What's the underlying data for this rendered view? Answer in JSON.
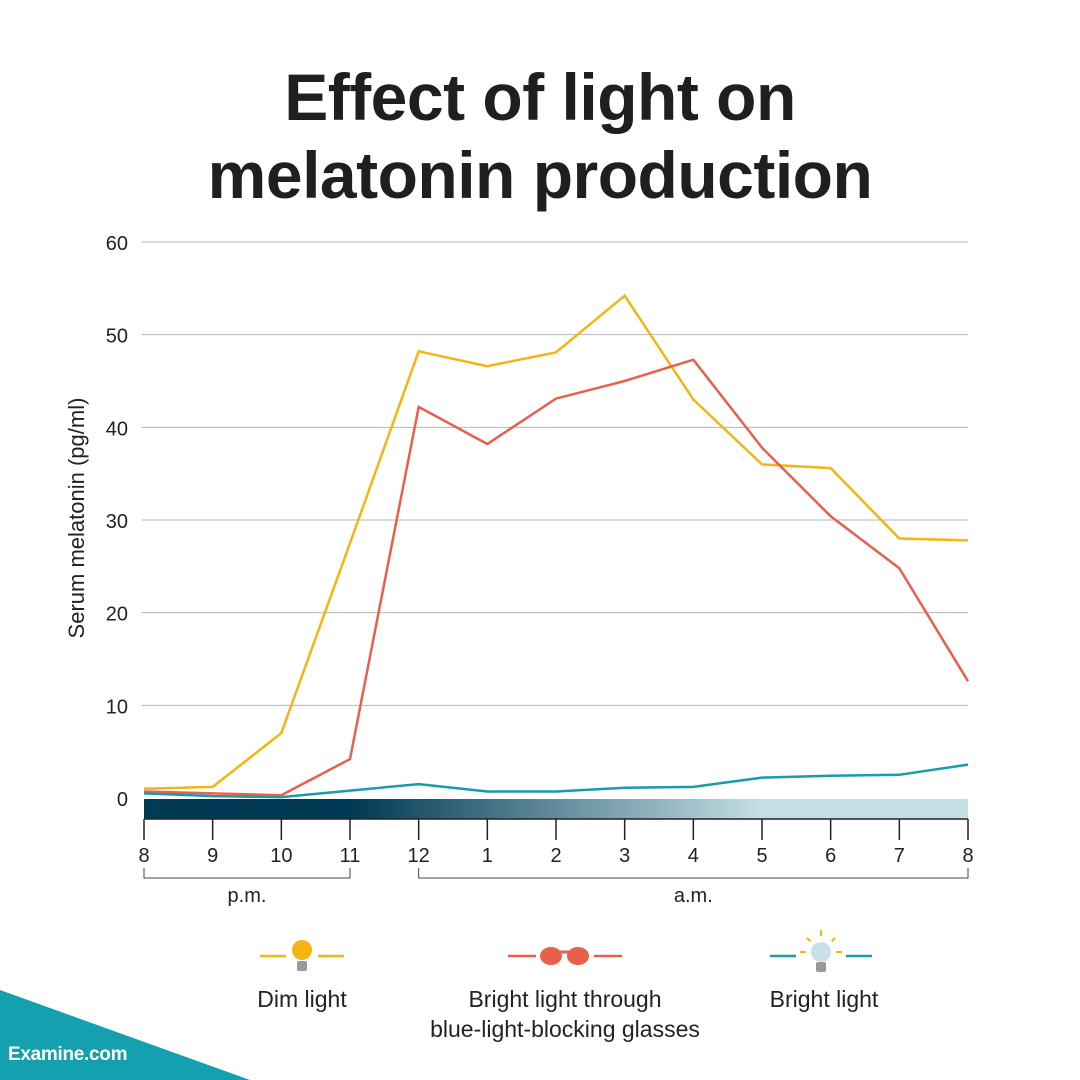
{
  "title_line1": "Effect of light on",
  "title_line2": "melatonin production",
  "brand": "Examine.com",
  "colors": {
    "dim": "#F5B414",
    "glasses": "#E8604C",
    "bright": "#1A9BAA",
    "grid": "#B5B5B5",
    "night_dark": "#003A55",
    "night_light": "#C4DEE4",
    "brand": "#14A0AF"
  },
  "legend": [
    {
      "label": "Dim light",
      "icon": "dim-bulb-icon",
      "color": "#F5B414"
    },
    {
      "label_line1": "Bright light through",
      "label_line2": "blue-light-blocking glasses",
      "icon": "glasses-icon",
      "color": "#E8604C"
    },
    {
      "label": "Bright light",
      "icon": "bright-bulb-icon",
      "color": "#1A9BAA"
    }
  ],
  "chart_data": {
    "type": "line",
    "title": "Effect of light on melatonin production",
    "xlabel": "",
    "ylabel": "Serum melatonin (pg/ml)",
    "ylim": [
      0,
      60
    ],
    "yticks": [
      0,
      10,
      20,
      30,
      40,
      50,
      60
    ],
    "x_tick_labels": [
      "8",
      "9",
      "10",
      "11",
      "12",
      "1",
      "2",
      "3",
      "4",
      "5",
      "6",
      "7",
      "8"
    ],
    "x_groups": [
      {
        "label": "p.m.",
        "from": 0,
        "to": 3
      },
      {
        "label": "a.m.",
        "from": 4,
        "to": 12
      }
    ],
    "grid": true,
    "legend_position": "bottom",
    "series": [
      {
        "name": "Dim light",
        "x": [
          0,
          1,
          2,
          3,
          4,
          5,
          6,
          7,
          8,
          9,
          10,
          11,
          12
        ],
        "values": [
          1.0,
          1.2,
          7.0,
          27.5,
          48.2,
          46.6,
          48.1,
          54.2,
          43.0,
          36.0,
          35.6,
          28.0,
          27.8
        ]
      },
      {
        "name": "Bright light through blue-light-blocking glasses",
        "x": [
          0,
          1,
          2,
          3,
          4,
          5,
          6,
          7,
          8,
          9,
          10,
          11,
          12
        ],
        "values": [
          0.7,
          0.5,
          0.3,
          4.2,
          42.2,
          38.2,
          43.1,
          45.0,
          47.3,
          37.8,
          30.4,
          24.8,
          12.6
        ]
      },
      {
        "name": "Bright light",
        "x": [
          0,
          1,
          2,
          3,
          4,
          5,
          6,
          7,
          8,
          9,
          10,
          11,
          12
        ],
        "values": [
          0.5,
          0.2,
          0.1,
          0.8,
          1.5,
          0.7,
          0.7,
          1.1,
          1.2,
          2.2,
          2.4,
          2.5,
          3.6
        ]
      }
    ]
  }
}
